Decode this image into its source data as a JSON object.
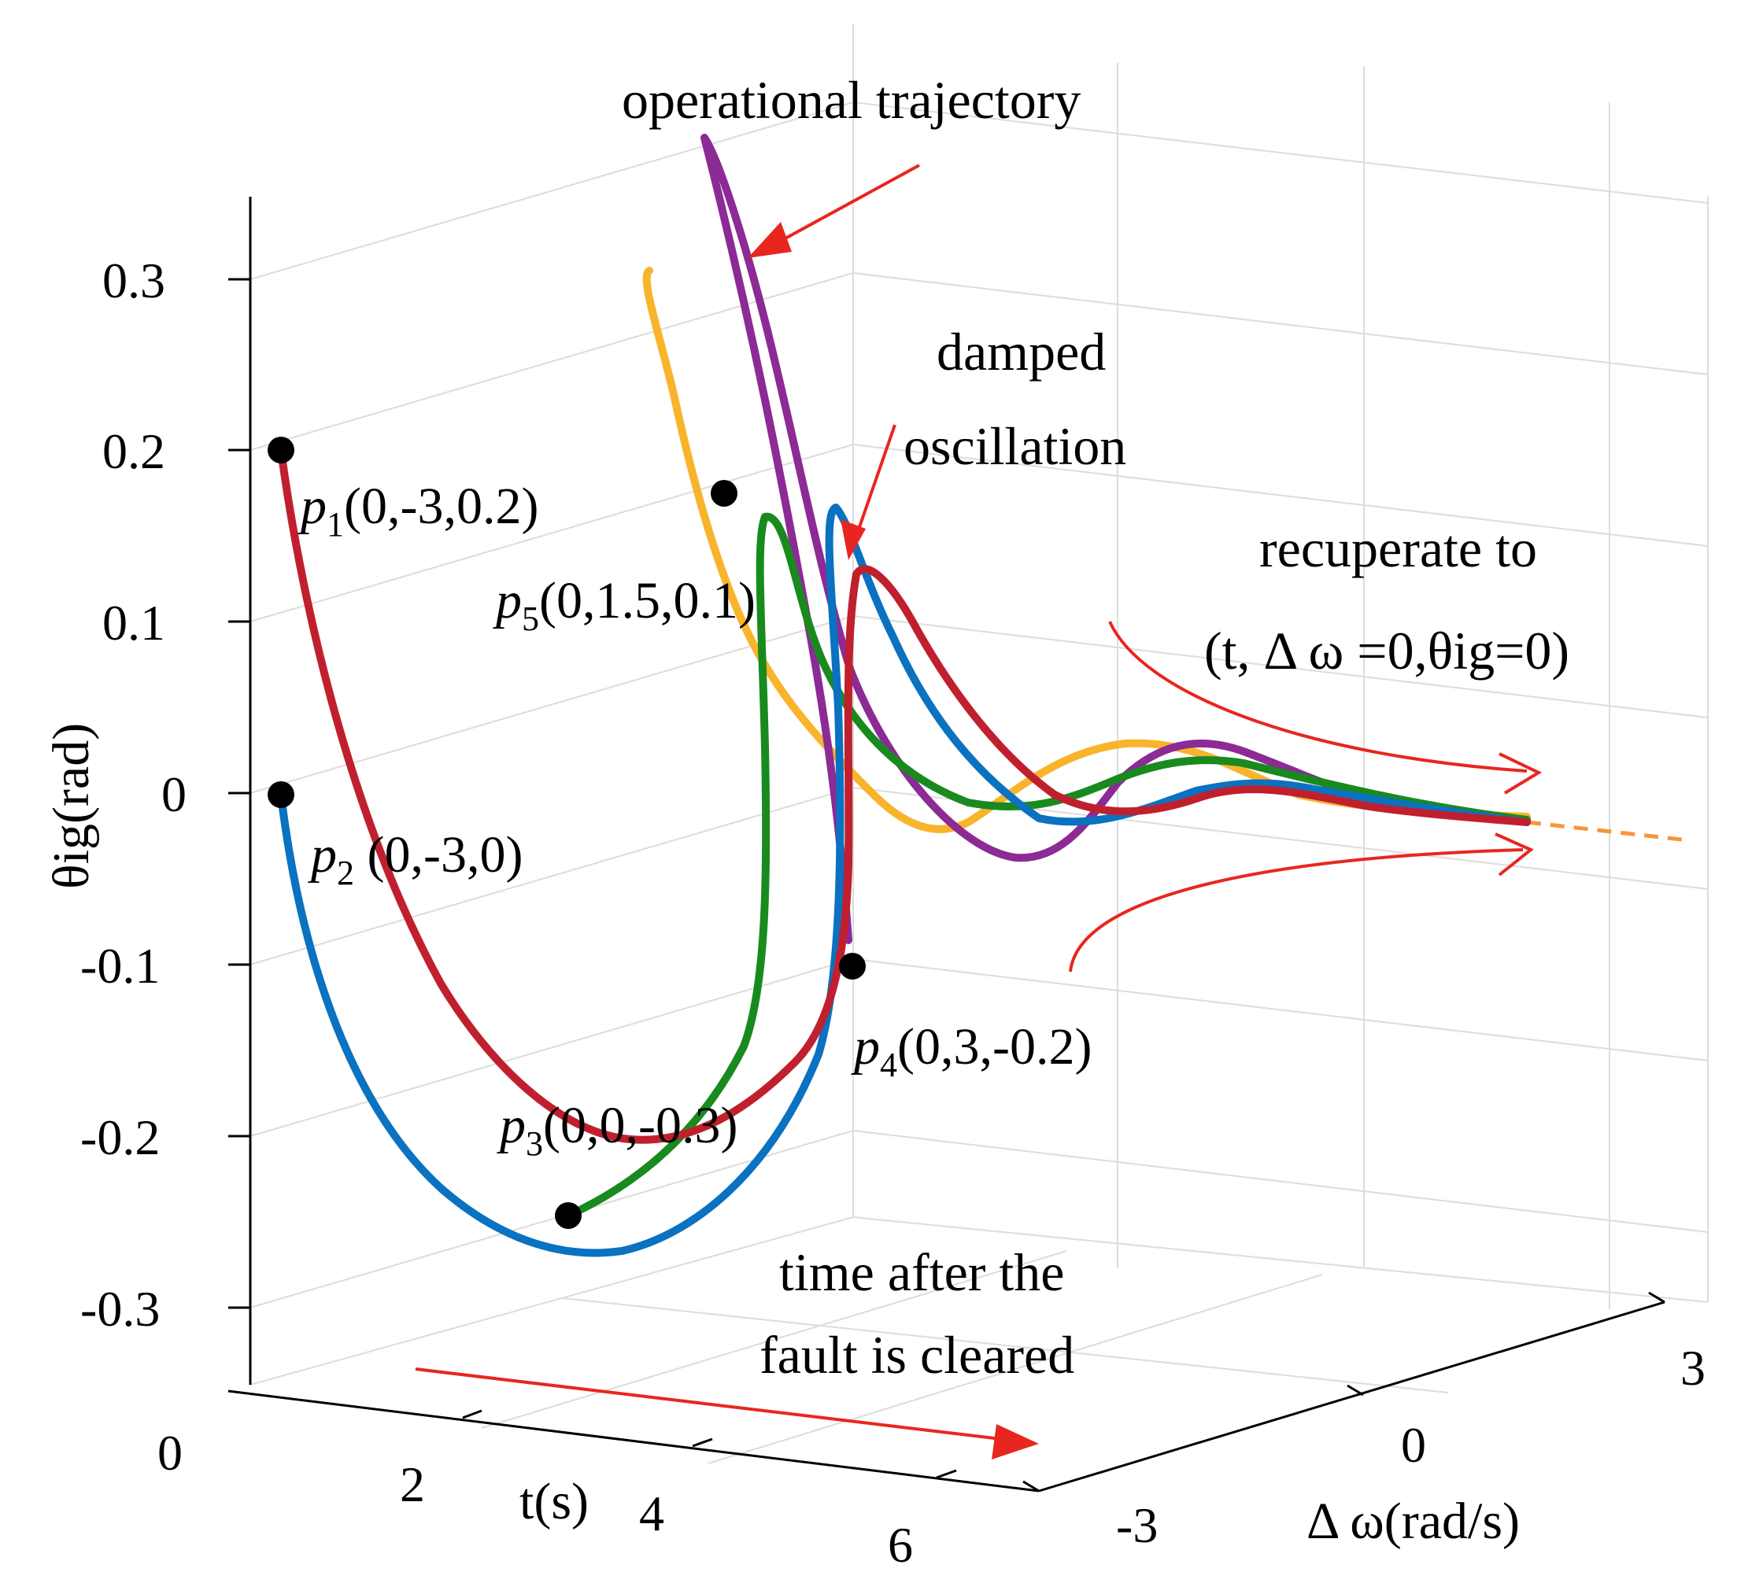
{
  "chart_data": {
    "type": "line",
    "projection": "3d",
    "axes": {
      "z": {
        "label": "θig(rad)",
        "ticks": [
          "0.3",
          "0.2",
          "0.1",
          "0",
          "-0.1",
          "-0.2",
          "-0.3"
        ],
        "range": [
          -0.3,
          0.3
        ]
      },
      "x": {
        "label": "t(s)",
        "ticks": [
          "0",
          "2",
          "4",
          "6"
        ],
        "range": [
          0,
          6
        ]
      },
      "y": {
        "label": "Δ ω(rad/s)",
        "ticks": [
          "-3",
          "0",
          "3"
        ],
        "range": [
          -3,
          3
        ]
      }
    },
    "grid": true,
    "series": [
      {
        "id": "p1",
        "color": "#c0202e",
        "start": [
          0,
          -3,
          0.2
        ]
      },
      {
        "id": "p2",
        "color": "#0a72c0",
        "start": [
          0,
          -3,
          0
        ]
      },
      {
        "id": "p3",
        "color": "#198a1e",
        "start": [
          0,
          0,
          -0.3
        ]
      },
      {
        "id": "p4",
        "color": "#8c2a96",
        "start": [
          0,
          3,
          -0.2
        ]
      },
      {
        "id": "p5",
        "color": "#f8b42c",
        "start": [
          0,
          1.5,
          0.1
        ]
      }
    ],
    "points": [
      {
        "sub": "1",
        "coords": "(0,-3,0.2)"
      },
      {
        "sub": "2",
        "coords": " (0,-3,0)"
      },
      {
        "sub": "3",
        "coords": "(0,0,-0.3)"
      },
      {
        "sub": "4",
        "coords": "(0,3,-0.2)"
      },
      {
        "sub": "5",
        "coords": "(0,1.5,0.1)"
      }
    ],
    "annotations": {
      "operational": "operational trajectory",
      "damped_1": "damped",
      "damped_2": "oscillation",
      "recup_1": "recuperate to",
      "recup_2": "(t, Δ ω =0,θig=0)",
      "time_1": "time after the",
      "time_2": "fault is cleared"
    },
    "colors": {
      "annotation_arrow": "#e8261f",
      "equilibrium_dash": "#f7953a"
    }
  }
}
